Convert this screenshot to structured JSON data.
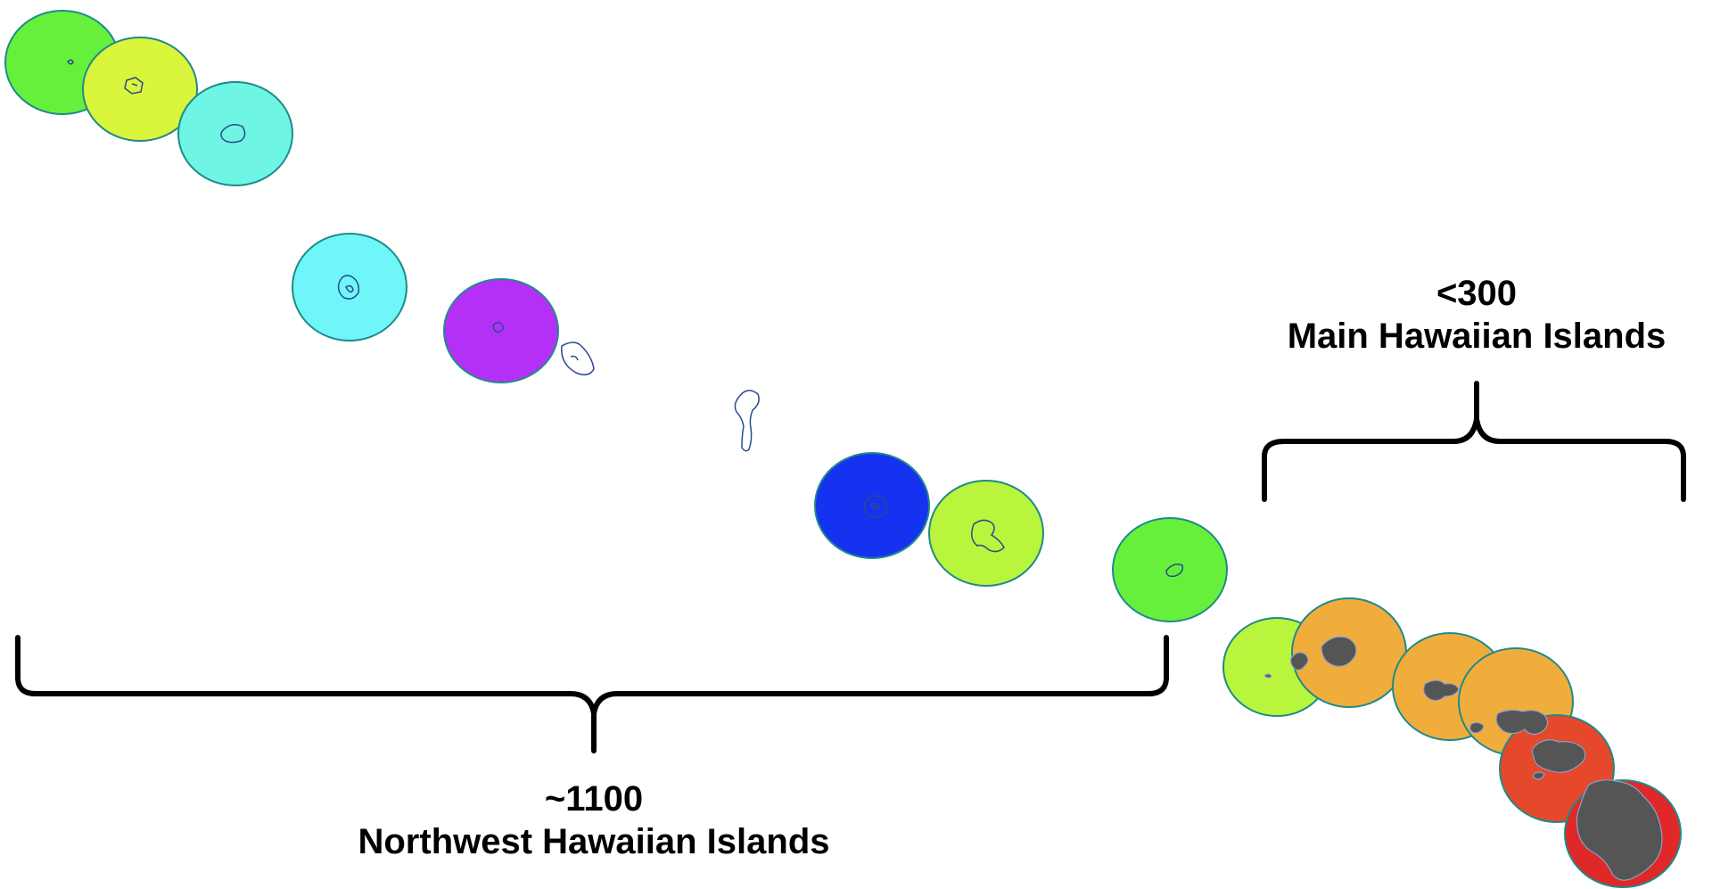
{
  "groups": {
    "main": {
      "count": "<300",
      "name": "Main Hawaiian Islands"
    },
    "northwest": {
      "count": "~1100",
      "name": "Northwest Hawaiian Islands"
    }
  },
  "colors": {
    "circle_stroke": "#1f8a8a",
    "island_outline": "#2c4a8c",
    "island_fill_main": "#555555",
    "bracket": "#000000",
    "lime": "#66f03c",
    "yellow_green": "#d9f53c",
    "aqua": "#6ef5e3",
    "cyan": "#6ef6f8",
    "purple": "#b530f7",
    "blue": "#1532f0",
    "light_green": "#b8f53c",
    "orange": "#f0ad3c",
    "red_orange": "#e5482a",
    "red": "#e02828"
  }
}
